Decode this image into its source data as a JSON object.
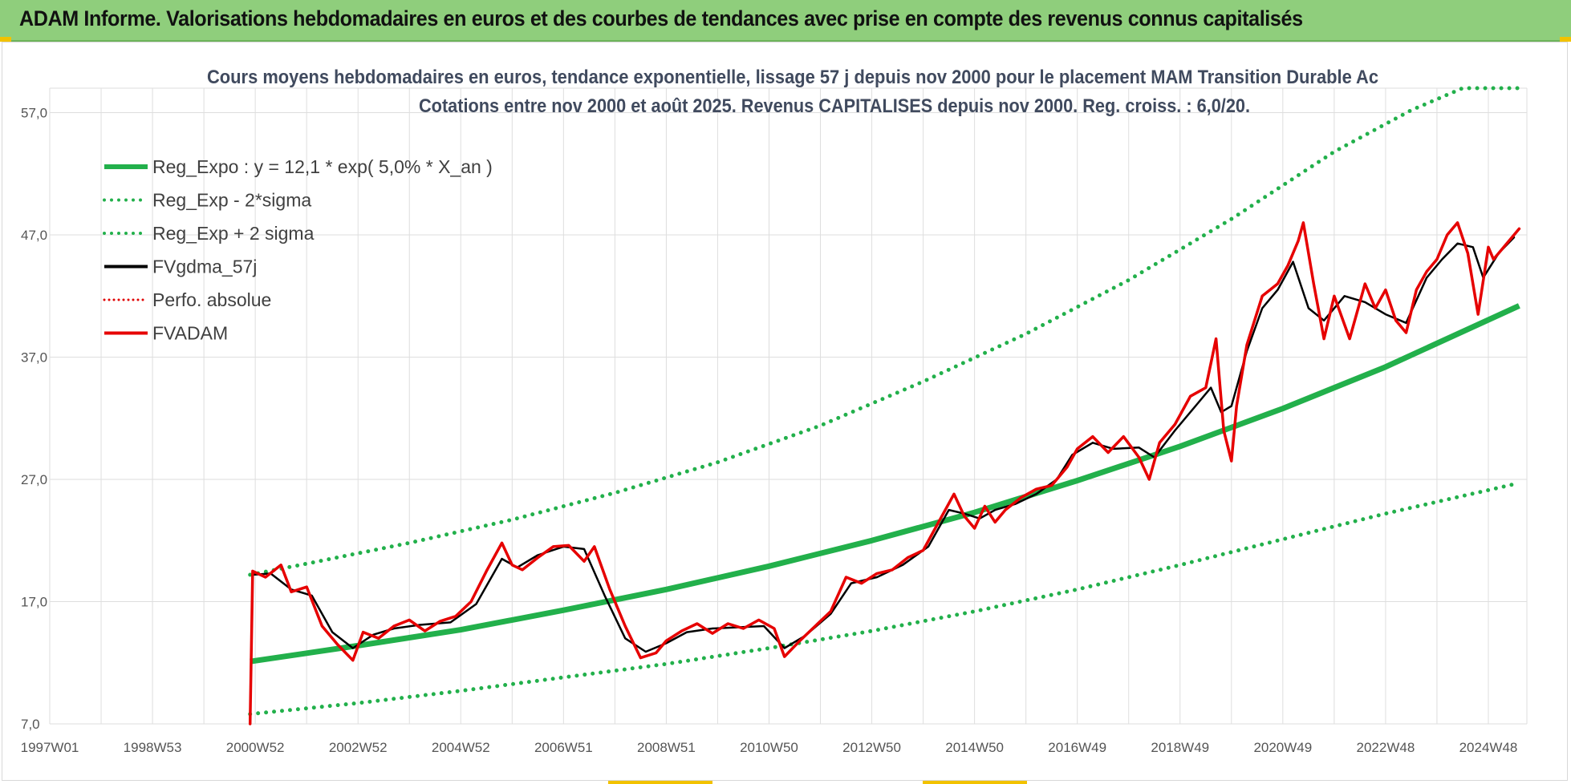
{
  "header": {
    "title": "ADAM Informe. Valorisations hebdomadaires en euros et des courbes de tendances avec prise en compte des revenus connus capitalisés"
  },
  "colors": {
    "banner": "#8fce7c",
    "trend": "#22b04b",
    "sigma": "#22b04b",
    "smooth": "#000000",
    "perfo": "#e00000",
    "fvadam": "#e60000",
    "grid": "#dedede"
  },
  "chart_data": {
    "type": "line",
    "title": "Cours moyens hebdomadaires en euros, tendance exponentielle, lissage 57 j depuis nov 2000  pour le placement MAM Transition Durable Ac",
    "subtitle": "Cotations entre nov 2000 et août 2025. Revenus CAPITALISES depuis nov 2000. Reg. croiss. : 6,0/20.",
    "xlabel": "",
    "ylabel": "",
    "x_ticks": [
      "1997W01",
      "1998W53",
      "2000W52",
      "2002W52",
      "2004W52",
      "2006W51",
      "2008W51",
      "2010W50",
      "2012W50",
      "2014W50",
      "2016W49",
      "2018W49",
      "2020W49",
      "2022W48",
      "2024W48"
    ],
    "x_range_years": [
      1997.0,
      2025.75
    ],
    "y_ticks": [
      "7,0",
      "17,0",
      "27,0",
      "37,0",
      "47,0",
      "57,0"
    ],
    "ylim": [
      7,
      57
    ],
    "grid": true,
    "legend_position": "top-left",
    "series": [
      {
        "name": "Reg_Expo : y = 12,1 * exp( 5,0% *  X_an )",
        "style": "solid-thick",
        "color": "#22b04b",
        "x": [
          2000.9,
          2003,
          2005,
          2007,
          2009,
          2011,
          2013,
          2015,
          2017,
          2019,
          2021,
          2023,
          2025.6
        ],
        "y": [
          12.1,
          13.4,
          14.7,
          16.3,
          18.0,
          19.9,
          22.0,
          24.3,
          26.9,
          29.7,
          32.8,
          36.2,
          41.2
        ]
      },
      {
        "name": "Reg_Exp - 2*sigma",
        "style": "dotted",
        "color": "#22b04b",
        "x": [
          2000.9,
          2003,
          2005,
          2007,
          2009,
          2011,
          2013,
          2015,
          2017,
          2019,
          2021,
          2023,
          2025.6
        ],
        "y": [
          7.8,
          8.7,
          9.7,
          10.8,
          11.9,
          13.2,
          14.6,
          16.2,
          18.0,
          20.0,
          22.1,
          24.2,
          26.7
        ]
      },
      {
        "name": "Reg_Exp + 2 sigma",
        "style": "dotted",
        "color": "#22b04b",
        "x": [
          2000.9,
          2002,
          2004,
          2006,
          2008,
          2010,
          2012,
          2014,
          2016,
          2018,
          2020,
          2022,
          2023.5,
          2024.5,
          2025.6
        ],
        "y": [
          19.2,
          20.1,
          21.8,
          23.7,
          25.9,
          28.4,
          31.4,
          35.0,
          38.9,
          43.3,
          48.3,
          53.8,
          57.2,
          59.0,
          59.0
        ]
      },
      {
        "name": "FVgdma_57j",
        "style": "solid",
        "color": "#000000",
        "x": [
          2000.95,
          2001.3,
          2001.7,
          2002.1,
          2002.5,
          2002.9,
          2003.3,
          2003.7,
          2004.2,
          2004.8,
          2005.3,
          2005.8,
          2006.1,
          2006.5,
          2007.0,
          2007.4,
          2007.8,
          2008.2,
          2008.6,
          2009.0,
          2009.4,
          2009.9,
          2010.4,
          2010.9,
          2011.3,
          2011.7,
          2012.2,
          2012.6,
          2013.1,
          2013.6,
          2014.1,
          2014.5,
          2014.8,
          2015.1,
          2015.4,
          2015.8,
          2016.2,
          2016.6,
          2016.9,
          2017.3,
          2017.7,
          2018.2,
          2018.5,
          2018.9,
          2019.3,
          2019.6,
          2019.8,
          2020.0,
          2020.3,
          2020.6,
          2020.9,
          2021.2,
          2021.5,
          2021.8,
          2022.2,
          2022.6,
          2023.0,
          2023.4,
          2023.8,
          2024.1,
          2024.4,
          2024.7,
          2024.9,
          2025.2,
          2025.5
        ],
        "y": [
          19.2,
          19.3,
          18.0,
          17.5,
          14.5,
          13.2,
          14.3,
          14.8,
          15.1,
          15.3,
          16.8,
          20.5,
          19.8,
          20.8,
          21.5,
          21.3,
          17.5,
          14.0,
          12.9,
          13.6,
          14.5,
          14.8,
          14.9,
          15.0,
          13.2,
          14.2,
          16.0,
          18.5,
          19.0,
          20.0,
          21.5,
          24.5,
          24.2,
          23.8,
          24.5,
          25.0,
          25.8,
          27.0,
          29.0,
          30.0,
          29.5,
          29.6,
          28.8,
          31.0,
          33.0,
          34.5,
          32.5,
          33.0,
          37.5,
          41.0,
          42.5,
          44.8,
          41.0,
          40.0,
          42.0,
          41.5,
          40.5,
          39.8,
          43.5,
          45.0,
          46.3,
          46.0,
          43.5,
          45.5,
          46.8
        ]
      },
      {
        "name": "Perfo. absolue",
        "style": "dotted",
        "color": "#e00000",
        "x": [],
        "y": []
      },
      {
        "name": "FVADAM",
        "style": "solid",
        "color": "#e60000",
        "x": [
          2000.9,
          2000.95,
          2001.2,
          2001.5,
          2001.7,
          2002.0,
          2002.3,
          2002.6,
          2002.9,
          2003.1,
          2003.4,
          2003.7,
          2004.0,
          2004.3,
          2004.6,
          2004.9,
          2005.2,
          2005.5,
          2005.8,
          2006.0,
          2006.2,
          2006.5,
          2006.8,
          2007.1,
          2007.4,
          2007.6,
          2007.9,
          2008.2,
          2008.5,
          2008.8,
          2009.0,
          2009.3,
          2009.6,
          2009.9,
          2010.2,
          2010.5,
          2010.8,
          2011.1,
          2011.3,
          2011.6,
          2011.9,
          2012.2,
          2012.5,
          2012.8,
          2013.1,
          2013.4,
          2013.7,
          2014.0,
          2014.3,
          2014.6,
          2014.8,
          2015.0,
          2015.2,
          2015.4,
          2015.6,
          2015.9,
          2016.2,
          2016.5,
          2016.8,
          2017.0,
          2017.3,
          2017.6,
          2017.9,
          2018.2,
          2018.4,
          2018.6,
          2018.9,
          2019.2,
          2019.5,
          2019.7,
          2019.85,
          2020.0,
          2020.1,
          2020.3,
          2020.6,
          2020.9,
          2021.1,
          2021.3,
          2021.4,
          2021.6,
          2021.8,
          2022.0,
          2022.3,
          2022.6,
          2022.8,
          2023.0,
          2023.2,
          2023.4,
          2023.6,
          2023.8,
          2024.0,
          2024.2,
          2024.4,
          2024.6,
          2024.8,
          2025.0,
          2025.1,
          2025.3,
          2025.6
        ],
        "y": [
          7.0,
          19.5,
          19.0,
          20.0,
          17.8,
          18.2,
          15.0,
          13.5,
          12.2,
          14.5,
          14.0,
          15.0,
          15.5,
          14.6,
          15.4,
          15.8,
          17.0,
          19.5,
          21.8,
          20.0,
          19.6,
          20.6,
          21.5,
          21.6,
          20.3,
          21.5,
          18.0,
          15.0,
          12.4,
          12.8,
          13.8,
          14.6,
          15.2,
          14.4,
          15.2,
          14.8,
          15.5,
          14.8,
          12.5,
          13.8,
          15.0,
          16.2,
          19.0,
          18.5,
          19.3,
          19.6,
          20.6,
          21.2,
          23.5,
          25.8,
          24.0,
          23.0,
          24.8,
          23.5,
          24.5,
          25.5,
          26.2,
          26.5,
          28.0,
          29.5,
          30.5,
          29.2,
          30.5,
          28.8,
          27.0,
          30.0,
          31.5,
          33.8,
          34.5,
          38.5,
          31.0,
          28.5,
          33.0,
          38.0,
          42.0,
          43.0,
          44.5,
          46.5,
          48.0,
          43.0,
          38.5,
          42.0,
          38.5,
          43.0,
          41.0,
          42.5,
          40.0,
          39.0,
          42.5,
          44.0,
          45.0,
          47.0,
          48.0,
          45.5,
          40.5,
          46.0,
          45.0,
          46.0,
          47.5
        ]
      }
    ]
  }
}
